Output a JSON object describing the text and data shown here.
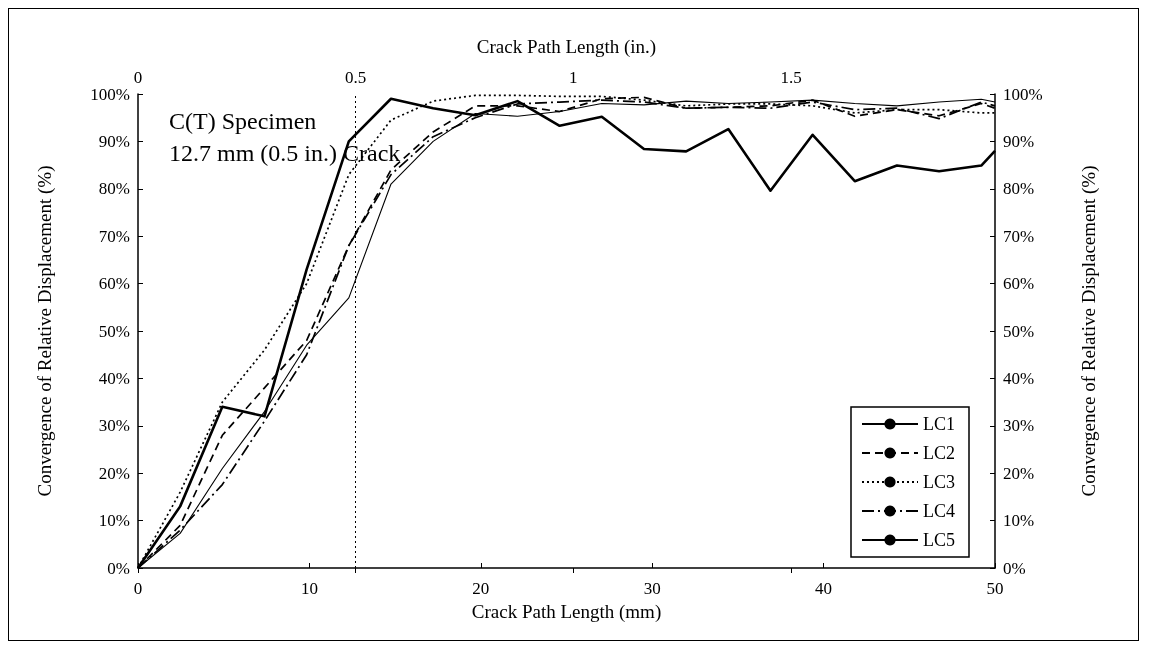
{
  "chart_data": {
    "type": "line",
    "xlabel": "Crack Path Length (mm)",
    "x2label": "Crack Path Length (in.)",
    "ylabel": "Convergence of Relative Displacement (%)",
    "y2label": "Convergence of Relative Displacement (%)",
    "annotations": [
      "C(T) Specimen",
      "12.7 mm (0.5 in.) Crack"
    ],
    "x": [
      0,
      2.46,
      4.92,
      7.38,
      9.84,
      12.3,
      14.76,
      17.22,
      19.68,
      22.14,
      24.6,
      27.06,
      29.52,
      31.98,
      34.44,
      36.9,
      39.36,
      41.82,
      44.28,
      46.74,
      49.2,
      50
    ],
    "xlim": [
      0,
      50
    ],
    "xticks": [
      0,
      10,
      20,
      30,
      40,
      50
    ],
    "x2lim": [
      0,
      1.9685
    ],
    "x2ticks": [
      0,
      0.5,
      1,
      1.5
    ],
    "ylim": [
      0,
      100
    ],
    "yticks": [
      {
        "value": 0,
        "label": "0%"
      },
      {
        "value": 10,
        "label": "10%"
      },
      {
        "value": 20,
        "label": "20%"
      },
      {
        "value": 30,
        "label": "30%"
      },
      {
        "value": 40,
        "label": "40%"
      },
      {
        "value": 50,
        "label": "50%"
      },
      {
        "value": 60,
        "label": "60%"
      },
      {
        "value": 70,
        "label": "70%"
      },
      {
        "value": 80,
        "label": "80%"
      },
      {
        "value": 90,
        "label": "90%"
      },
      {
        "value": 100,
        "label": "100%"
      }
    ],
    "y2lim": [
      0,
      100
    ],
    "y2ticks": [
      {
        "value": 0,
        "label": "0%"
      },
      {
        "value": 10,
        "label": "10%"
      },
      {
        "value": 20,
        "label": "20%"
      },
      {
        "value": 30,
        "label": "30%"
      },
      {
        "value": 40,
        "label": "40%"
      },
      {
        "value": 50,
        "label": "50%"
      },
      {
        "value": 60,
        "label": "60%"
      },
      {
        "value": 70,
        "label": "70%"
      },
      {
        "value": 80,
        "label": "80%"
      },
      {
        "value": 90,
        "label": "90%"
      },
      {
        "value": 100,
        "label": "100%"
      }
    ],
    "ref_lines": [
      {
        "axis": "x",
        "value": 12.7,
        "color": "#000000",
        "line_style": "dotted"
      }
    ],
    "grid": false,
    "legend": "bottom right",
    "marker": "none",
    "series": [
      {
        "name": "LC1",
        "color": "#000000",
        "line_style": "solid",
        "values": [
          0,
          13,
          34,
          32,
          63,
          90,
          99,
          97,
          95.5,
          98.5,
          93.3,
          95.2,
          88.4,
          87.9,
          92.6,
          79.6,
          91.4,
          81.6,
          84.9,
          83.7,
          84.9,
          88
        ]
      },
      {
        "name": "LC2",
        "color": "#000000",
        "line_style": "dashed",
        "values": [
          0,
          9,
          28,
          38,
          48,
          68,
          84,
          92,
          97.5,
          97.5,
          96.3,
          99,
          99.3,
          97,
          97.2,
          97.5,
          98.7,
          95.3,
          96.7,
          95.4,
          98,
          97
        ]
      },
      {
        "name": "LC3",
        "color": "#000000",
        "line_style": "dotted",
        "values": [
          0,
          16,
          35,
          46,
          60,
          83,
          94.5,
          98.5,
          99.7,
          99.7,
          99.5,
          99.5,
          98.7,
          97.5,
          97.9,
          97.9,
          97.5,
          96,
          96.7,
          96.7,
          96,
          96
        ]
      },
      {
        "name": "LC4",
        "color": "#000000",
        "line_style": "dashdot",
        "values": [
          0,
          8,
          17.6,
          31,
          45,
          68,
          83,
          91,
          95,
          97.9,
          98.3,
          98.7,
          98.3,
          97,
          97.2,
          97,
          98.3,
          96.7,
          97,
          94.8,
          98.3,
          97.5
        ]
      },
      {
        "name": "LC5",
        "color": "#000000",
        "line_style": "solid",
        "values": [
          0,
          7.3,
          21,
          33,
          47,
          57,
          81,
          90,
          95.9,
          95.3,
          96.3,
          98,
          97.7,
          98.5,
          98,
          98.3,
          98.7,
          98,
          97.5,
          98.3,
          98.9,
          98.3
        ]
      }
    ]
  }
}
